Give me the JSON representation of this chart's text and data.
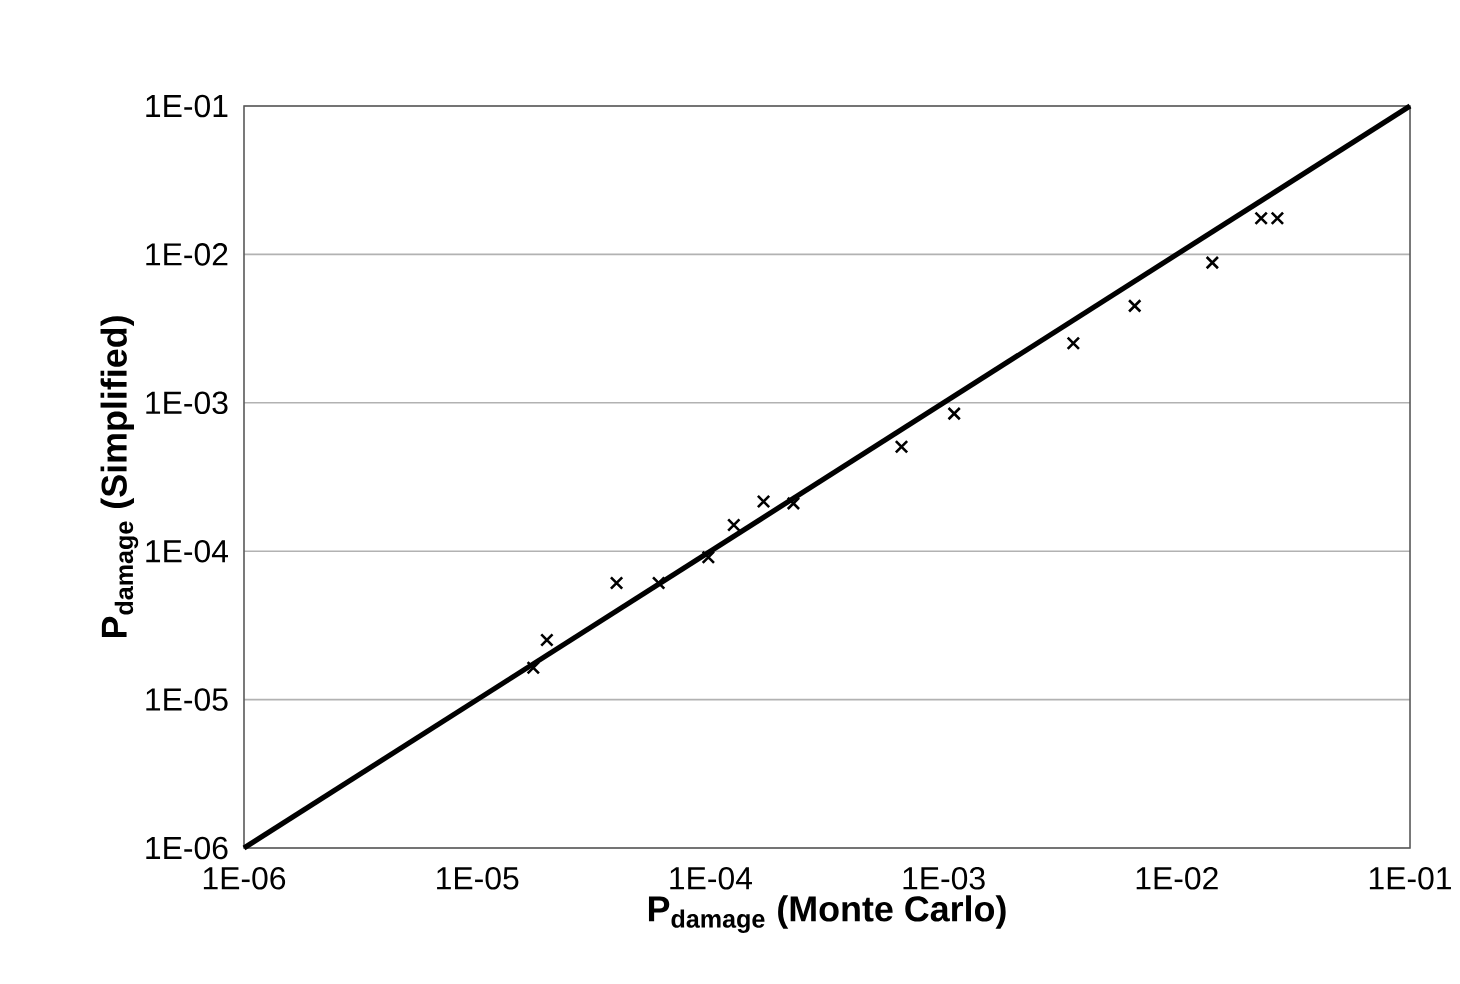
{
  "chart_data": {
    "type": "scatter",
    "xlabel": "P$_{damage}$ (Monte Carlo)",
    "ylabel": "P$_{damage}$ (Simplified)",
    "log": "xy",
    "grid": "y",
    "legend": false,
    "marker": "cross",
    "xlim": [
      1e-06,
      0.1
    ],
    "ylim": [
      1e-06,
      0.1
    ],
    "xticks": [
      {
        "value": 1e-06,
        "label": "1E-06"
      },
      {
        "value": 1e-05,
        "label": "1E-05"
      },
      {
        "value": 0.0001,
        "label": "1E-04"
      },
      {
        "value": 0.001,
        "label": "1E-03"
      },
      {
        "value": 0.01,
        "label": "1E-02"
      },
      {
        "value": 0.1,
        "label": "1E-01"
      }
    ],
    "yticks": [
      {
        "value": 1e-06,
        "label": "1E-06"
      },
      {
        "value": 1e-05,
        "label": "1E-05"
      },
      {
        "value": 0.0001,
        "label": "1E-04"
      },
      {
        "value": 0.001,
        "label": "1E-03"
      },
      {
        "value": 0.01,
        "label": "1E-02"
      },
      {
        "value": 0.1,
        "label": "1E-01"
      }
    ],
    "series": [
      {
        "color": "#000000",
        "x": [
          1.74e-05,
          1.99e-05,
          3.96e-05,
          6e-05,
          9.8e-05,
          0.000126,
          0.000169,
          0.000227,
          0.00066,
          0.00111,
          0.0036,
          0.0066,
          0.0142,
          0.023,
          0.027
        ],
        "values": [
          1.64e-05,
          2.52e-05,
          6.1e-05,
          6.1e-05,
          9.1e-05,
          0.00015,
          0.000216,
          0.00021,
          0.000506,
          0.000845,
          0.00252,
          0.0045,
          0.0088,
          0.0175,
          0.0175
        ]
      },
      {
        "type": "line",
        "color": "#000000",
        "marker": "none",
        "line_style": "solid",
        "x": [
          1e-06,
          0.1
        ],
        "values": [
          1e-06,
          0.1
        ]
      }
    ]
  }
}
